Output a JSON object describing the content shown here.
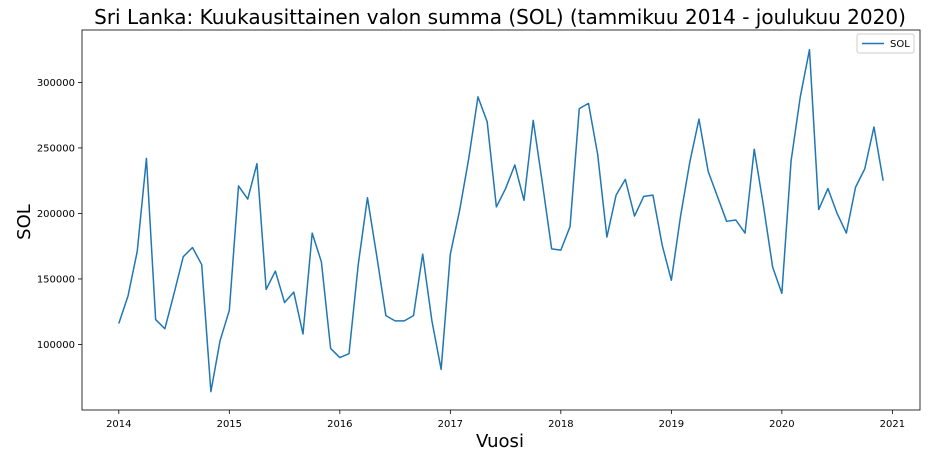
{
  "chart_data": {
    "type": "line",
    "title": "Sri Lanka: Kuukausittainen valon summa (SOL) (tammikuu 2014 - joulukuu 2020)",
    "xlabel": "Vuosi",
    "ylabel": "SOL",
    "x_ticks": [
      "2014",
      "2015",
      "2016",
      "2017",
      "2018",
      "2019",
      "2020",
      "2021"
    ],
    "y_ticks": [
      "100000",
      "150000",
      "200000",
      "250000",
      "300000"
    ],
    "xlim": [
      2013.667,
      2021.25
    ],
    "ylim": [
      50000,
      340000
    ],
    "legend": {
      "position": "top-right"
    },
    "grid": false,
    "color": "#1f77b4",
    "x_start": "2014-01",
    "x_step": "1 month",
    "series": [
      {
        "name": "SOL",
        "values": [
          116000,
          137000,
          171000,
          242000,
          119000,
          112000,
          139000,
          167000,
          174000,
          161000,
          64000,
          103000,
          126000,
          221000,
          211000,
          238000,
          142000,
          156000,
          132000,
          140000,
          108000,
          185000,
          163000,
          97000,
          90000,
          93000,
          161000,
          212000,
          168000,
          122000,
          118000,
          118000,
          122000,
          169000,
          118000,
          81000,
          169000,
          202000,
          242000,
          289000,
          270000,
          205000,
          219000,
          237000,
          210000,
          271000,
          223000,
          173000,
          172000,
          190000,
          280000,
          284000,
          245000,
          182000,
          214000,
          226000,
          198000,
          213000,
          214000,
          176000,
          149000,
          198000,
          239000,
          272000,
          232000,
          213000,
          194000,
          195000,
          185000,
          249000,
          206000,
          159000,
          139000,
          240000,
          289000,
          325000,
          203000,
          219000,
          200000,
          185000,
          220000,
          234000,
          266000,
          225000
        ]
      }
    ]
  }
}
